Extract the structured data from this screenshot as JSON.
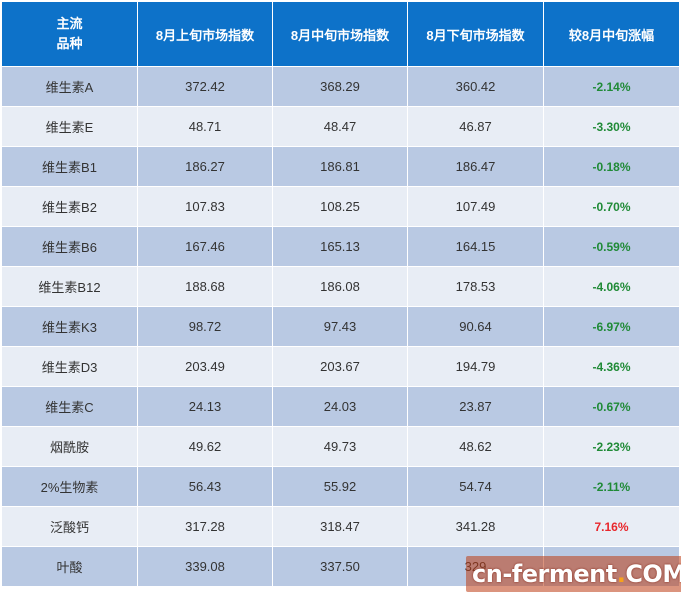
{
  "table": {
    "headers": {
      "col0_line1": "主流",
      "col0_line2": "品种",
      "col1": "8月上旬市场指数",
      "col2": "8月中旬市场指数",
      "col3": "8月下旬市场指数",
      "col4": "较8月中旬涨幅"
    },
    "rows": [
      {
        "name": "维生素A",
        "early": "372.42",
        "mid": "368.29",
        "late": "360.42",
        "change": "-2.14%",
        "direction": "down"
      },
      {
        "name": "维生素E",
        "early": "48.71",
        "mid": "48.47",
        "late": "46.87",
        "change": "-3.30%",
        "direction": "down"
      },
      {
        "name": "维生素B1",
        "early": "186.27",
        "mid": "186.81",
        "late": "186.47",
        "change": "-0.18%",
        "direction": "down"
      },
      {
        "name": "维生素B2",
        "early": "107.83",
        "mid": "108.25",
        "late": "107.49",
        "change": "-0.70%",
        "direction": "down"
      },
      {
        "name": "维生素B6",
        "early": "167.46",
        "mid": "165.13",
        "late": "164.15",
        "change": "-0.59%",
        "direction": "down"
      },
      {
        "name": "维生素B12",
        "early": "188.68",
        "mid": "186.08",
        "late": "178.53",
        "change": "-4.06%",
        "direction": "down"
      },
      {
        "name": "维生素K3",
        "early": "98.72",
        "mid": "97.43",
        "late": "90.64",
        "change": "-6.97%",
        "direction": "down"
      },
      {
        "name": "维生素D3",
        "early": "203.49",
        "mid": "203.67",
        "late": "194.79",
        "change": "-4.36%",
        "direction": "down"
      },
      {
        "name": "维生素C",
        "early": "24.13",
        "mid": "24.03",
        "late": "23.87",
        "change": "-0.67%",
        "direction": "down"
      },
      {
        "name": "烟酰胺",
        "early": "49.62",
        "mid": "49.73",
        "late": "48.62",
        "change": "-2.23%",
        "direction": "down"
      },
      {
        "name": "2%生物素",
        "early": "56.43",
        "mid": "55.92",
        "late": "54.74",
        "change": "-2.11%",
        "direction": "down"
      },
      {
        "name": "泛酸钙",
        "early": "317.28",
        "mid": "318.47",
        "late": "341.28",
        "change": "7.16%",
        "direction": "up"
      },
      {
        "name": "叶酸",
        "early": "339.08",
        "mid": "337.50",
        "late": "329",
        "change": "",
        "direction": "down"
      }
    ]
  },
  "watermark": {
    "part1": "cn",
    "sep": "-",
    "part2": "ferment",
    "dot": ".",
    "part3": "COM"
  },
  "colors": {
    "header_bg": "#0d72c9",
    "row_dark": "#b9c9e3",
    "row_light": "#e8edf5",
    "negative": "#1f8a36",
    "positive": "#e8262b"
  }
}
